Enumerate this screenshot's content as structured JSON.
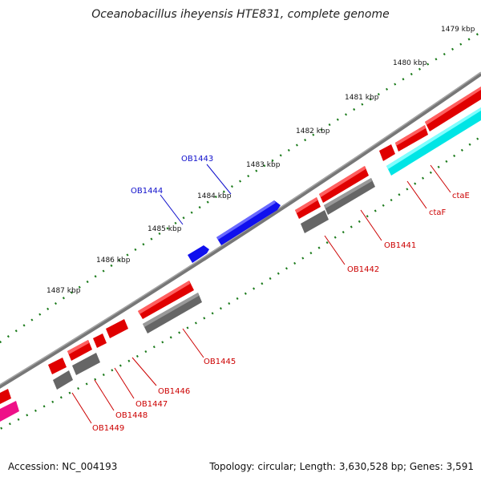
{
  "title": "Oceanobacillus iheyensis HTE831, complete genome",
  "footer": {
    "accession": "Accession: NC_004193",
    "info": "Topology: circular; Length: 3,630,528 bp; Genes: 3,591"
  },
  "colors": {
    "backbone": "#777777",
    "tick": "#1a7a1a",
    "forward_gene": "#e00000",
    "highlight_gene": "#1010ee",
    "grey_feature": "#666666",
    "cyan_feature": "#00e5e5",
    "magenta_feature": "#ee1188",
    "label_red": "#cc0000",
    "label_blue": "#1010cc"
  },
  "kbp_labels": [
    "1479 kbp",
    "1480 kbp",
    "1481 kbp",
    "1482 kbp",
    "1483 kbp",
    "1484 kbp",
    "1485 kbp",
    "1486 kbp",
    "1487 kbp"
  ],
  "gene_labels": {
    "ctaE": "ctaE",
    "ctaF": "ctaF",
    "OB1441": "OB1441",
    "OB1442": "OB1442",
    "OB1443": "OB1443",
    "OB1444": "OB1444",
    "OB1445": "OB1445",
    "OB1446": "OB1446",
    "OB1447": "OB1447",
    "OB1448": "OB1448",
    "OB1449": "OB1449"
  }
}
